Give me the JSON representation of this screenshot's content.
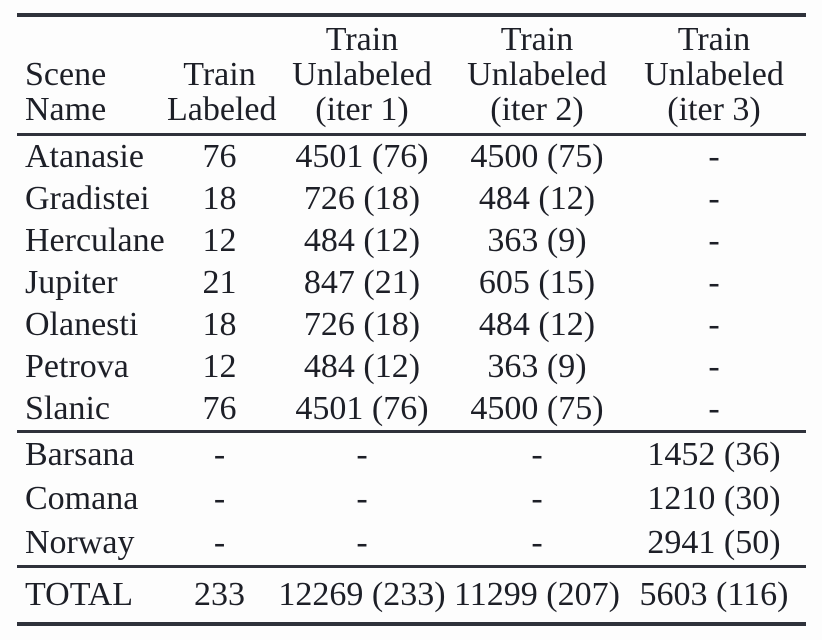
{
  "colors": {
    "text": "#1d1f27",
    "rule": "#2f323b",
    "background": "#fdfdfd"
  },
  "table": {
    "headers": [
      {
        "lines": [
          "Scene",
          "Name"
        ]
      },
      {
        "lines": [
          "Train",
          "Labeled"
        ]
      },
      {
        "lines": [
          "Train",
          "Unlabeled",
          "(iter 1)"
        ]
      },
      {
        "lines": [
          "Train",
          "Unlabeled",
          "(iter 2)"
        ]
      },
      {
        "lines": [
          "Train",
          "Unlabeled",
          "(iter 3)"
        ]
      }
    ],
    "sections": [
      {
        "rows": [
          {
            "cells": [
              "Atanasie",
              "76",
              "4501 (76)",
              "4500 (75)",
              "-"
            ]
          },
          {
            "cells": [
              "Gradistei",
              "18",
              "726 (18)",
              "484 (12)",
              "-"
            ]
          },
          {
            "cells": [
              "Herculane",
              "12",
              "484 (12)",
              "363 (9)",
              "-"
            ]
          },
          {
            "cells": [
              "Jupiter",
              "21",
              "847 (21)",
              "605 (15)",
              "-"
            ]
          },
          {
            "cells": [
              "Olanesti",
              "18",
              "726 (18)",
              "484 (12)",
              "-"
            ]
          },
          {
            "cells": [
              "Petrova",
              "12",
              "484 (12)",
              "363 (9)",
              "-"
            ]
          },
          {
            "cells": [
              "Slanic",
              "76",
              "4501 (76)",
              "4500 (75)",
              "-"
            ]
          }
        ]
      },
      {
        "rows": [
          {
            "cells": [
              "Barsana",
              "-",
              "-",
              "-",
              "1452 (36)"
            ]
          },
          {
            "cells": [
              "Comana",
              "-",
              "-",
              "-",
              "1210 (30)"
            ]
          },
          {
            "cells": [
              "Norway",
              "-",
              "-",
              "-",
              "2941 (50)"
            ]
          }
        ]
      },
      {
        "rows": [
          {
            "cells": [
              "TOTAL",
              "233",
              "12269 (233)",
              "11299 (207)",
              "5603 (116)"
            ]
          }
        ]
      }
    ]
  }
}
